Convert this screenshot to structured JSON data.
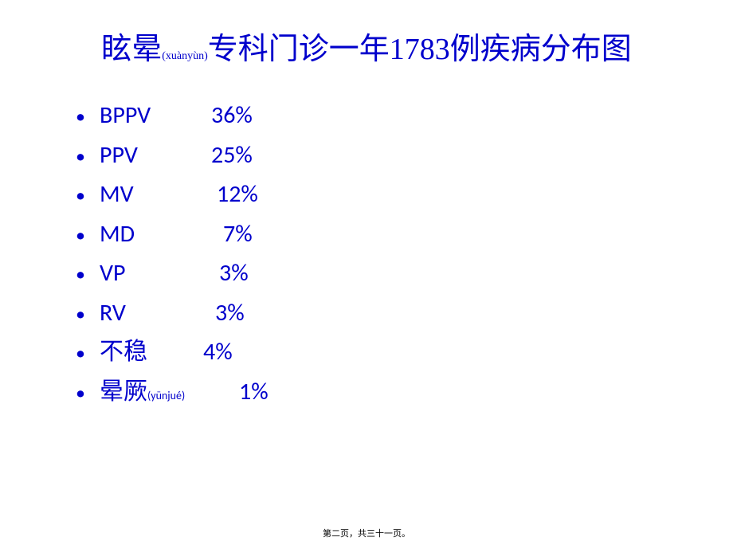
{
  "title": {
    "part1": "眩晕",
    "pinyin": "(xuànyùn)",
    "part2": "专科门诊一年1783例疾病分布图"
  },
  "items": [
    {
      "label": "BPPV",
      "pinyin": "",
      "value": "36%",
      "label_width": "140px"
    },
    {
      "label": "PPV",
      "pinyin": "",
      "value": "25%",
      "label_width": "140px"
    },
    {
      "label": "MV",
      "pinyin": "",
      "value": "12%",
      "label_width": "147px"
    },
    {
      "label": "MD",
      "pinyin": "",
      "value": "7%",
      "label_width": "155px"
    },
    {
      "label": "VP",
      "pinyin": "",
      "value": "3%",
      "label_width": "150px"
    },
    {
      "label": "RV",
      "pinyin": "",
      "value": "3%",
      "label_width": "145px"
    },
    {
      "label": "不稳",
      "pinyin": "",
      "value": "4%",
      "label_width": "130px"
    },
    {
      "label": "晕厥",
      "pinyin": "(yūnjué)",
      "value": "1%",
      "label_width": "175px"
    }
  ],
  "footer": "第二页，共三十一页。",
  "colors": {
    "text": "#0000cc",
    "background": "#ffffff",
    "footer": "#000000"
  },
  "typography": {
    "title_fontsize": 38,
    "item_fontsize": 30,
    "pinyin_fontsize": 14,
    "footer_fontsize": 11
  }
}
